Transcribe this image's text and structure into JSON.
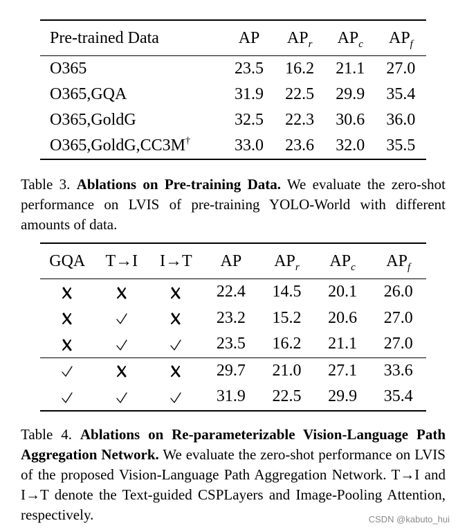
{
  "table3": {
    "headers": {
      "data": "Pre-trained Data",
      "ap": "AP",
      "apr_base": "AP",
      "apr_sub": "r",
      "apc_base": "AP",
      "apc_sub": "c",
      "apf_base": "AP",
      "apf_sub": "f"
    },
    "rows": [
      {
        "data": "O365",
        "dagger": "",
        "ap": "23.5",
        "apr": "16.2",
        "apc": "21.1",
        "apf": "27.0"
      },
      {
        "data": "O365,GQA",
        "dagger": "",
        "ap": "31.9",
        "apr": "22.5",
        "apc": "29.9",
        "apf": "35.4"
      },
      {
        "data": "O365,GoldG",
        "dagger": "",
        "ap": "32.5",
        "apr": "22.3",
        "apc": "30.6",
        "apf": "36.0"
      },
      {
        "data": "O365,GoldG,CC3M",
        "dagger": "†",
        "ap": "33.0",
        "apr": "23.6",
        "apc": "32.0",
        "apf": "35.5"
      }
    ]
  },
  "caption3": {
    "label": "Table 3.",
    "title": "Ablations on Pre-training Data.",
    "text": "We evaluate the zero-shot performance on LVIS of pre-training YOLO-World with different amounts of data."
  },
  "table4": {
    "headers": {
      "gqa": "GQA",
      "t2i": "T→I",
      "i2t": "I→T",
      "ap": "AP",
      "apr_base": "AP",
      "apr_sub": "r",
      "apc_base": "AP",
      "apc_sub": "c",
      "apf_base": "AP",
      "apf_sub": "f"
    },
    "mark_icons": {
      "yes": "check-icon",
      "no": "cross-icon"
    },
    "rows": [
      {
        "gqa": "no",
        "t2i": "no",
        "i2t": "no",
        "ap": "22.4",
        "apr": "14.5",
        "apc": "20.1",
        "apf": "26.0"
      },
      {
        "gqa": "no",
        "t2i": "yes",
        "i2t": "no",
        "ap": "23.2",
        "apr": "15.2",
        "apc": "20.6",
        "apf": "27.0"
      },
      {
        "gqa": "no",
        "t2i": "yes",
        "i2t": "yes",
        "ap": "23.5",
        "apr": "16.2",
        "apc": "21.1",
        "apf": "27.0"
      },
      {
        "gqa": "yes",
        "t2i": "no",
        "i2t": "no",
        "ap": "29.7",
        "apr": "21.0",
        "apc": "27.1",
        "apf": "33.6"
      },
      {
        "gqa": "yes",
        "t2i": "yes",
        "i2t": "yes",
        "ap": "31.9",
        "apr": "22.5",
        "apc": "29.9",
        "apf": "35.4"
      }
    ]
  },
  "caption4": {
    "label": "Table 4.",
    "title": "Ablations on Re-parameterizable Vision-Language Path Aggregation Network.",
    "text": "We evaluate the zero-shot performance on LVIS of the proposed Vision-Language Path Aggregation Network. T→I and I→T denote the Text-guided CSPLayers and Image-Pooling Attention, respectively."
  },
  "watermark": "CSDN @kabuto_hui"
}
